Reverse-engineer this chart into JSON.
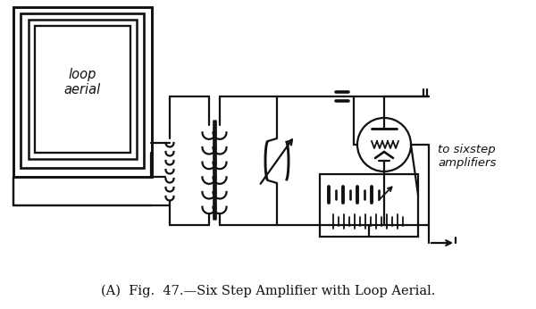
{
  "background_color": "#ffffff",
  "line_color": "#111111",
  "line_width": 1.6,
  "caption": "(A)  Fig.  47.—Six Step Amplifier with Loop Aerial.",
  "caption_fontsize": 10.5,
  "loop_aerial_label": "loop\naerial",
  "to_label": "to sixstep\namplifiers",
  "figsize": [
    6.0,
    3.46
  ],
  "dpi": 100
}
